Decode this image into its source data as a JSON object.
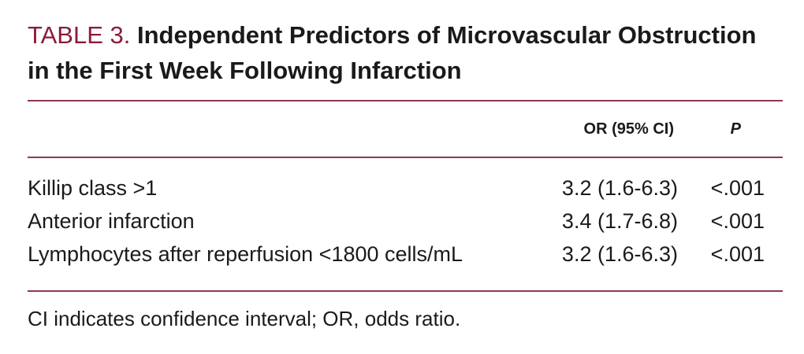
{
  "header": {
    "label": "TABLE 3.",
    "title": "Independent Predictors of Microvascular Obstruction in the First Week Following Infarction"
  },
  "table": {
    "columns": [
      "OR (95% CI)",
      "P"
    ],
    "rows": [
      [
        "Killip class >1",
        "3.2 (1.6-6.3)",
        "<.001"
      ],
      [
        "Anterior infarction",
        "3.4 (1.7-6.8)",
        "<.001"
      ],
      [
        "Lymphocytes after reperfusion <1800 cells/mL",
        "3.2 (1.6-6.3)",
        "<.001"
      ]
    ]
  },
  "footnote": "CI indicates confidence interval; OR, odds ratio."
}
